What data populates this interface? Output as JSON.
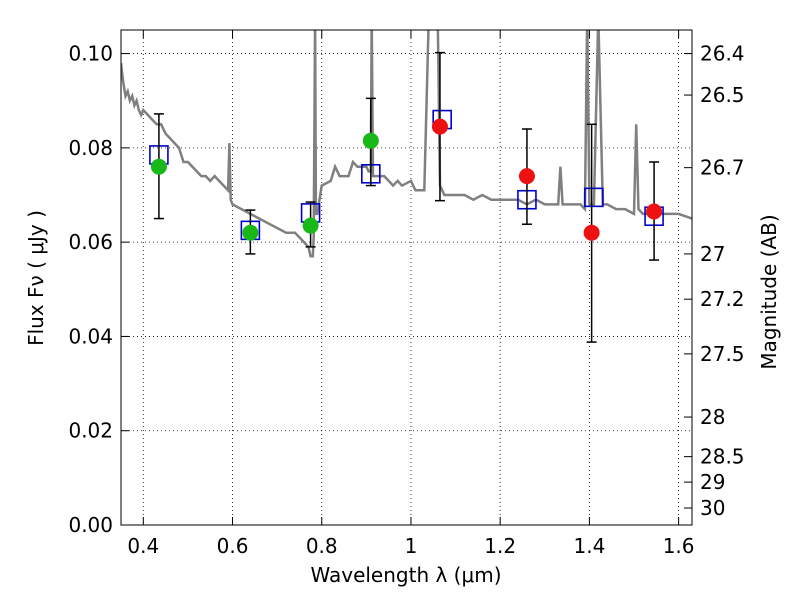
{
  "chart_data": {
    "type": "scatter",
    "title": "",
    "xlabel": "Wavelength  λ (μm)",
    "ylabel": "Flux  Fν  ( μJy )",
    "y2label": "Magnitude (AB)",
    "xlim": [
      0.35,
      1.63
    ],
    "ylim": [
      0.0,
      0.105
    ],
    "grid": true,
    "x_ticks": [
      0.4,
      0.6,
      0.8,
      1.0,
      1.2,
      1.4,
      1.6
    ],
    "x_tick_labels": [
      "0.4",
      "0.6",
      "0.8",
      "1",
      "1.2",
      "1.4",
      "1.6"
    ],
    "y_ticks": [
      0.0,
      0.02,
      0.04,
      0.06,
      0.08,
      0.1
    ],
    "y_tick_labels": [
      "0.00",
      "0.02",
      "0.04",
      "0.06",
      "0.08",
      "0.10"
    ],
    "y2_ticks": [
      {
        "label": "26.4",
        "flux": 0.1
      },
      {
        "label": "26.5",
        "flux": 0.0912
      },
      {
        "label": "26.7",
        "flux": 0.0758
      },
      {
        "label": "27",
        "flux": 0.0575
      },
      {
        "label": "27.2",
        "flux": 0.0479
      },
      {
        "label": "27.5",
        "flux": 0.0363
      },
      {
        "label": "28",
        "flux": 0.0229
      },
      {
        "label": "28.5",
        "flux": 0.0145
      },
      {
        "label": "29",
        "flux": 0.0091
      },
      {
        "label": "30",
        "flux": 0.0036
      }
    ],
    "colors": {
      "template": "#808080",
      "model_box": "#0000cc",
      "optical_point": "#17b817",
      "nir_point": "#ee1111",
      "errorbar": "#000000"
    },
    "series": [
      {
        "kind": "line",
        "x": [
          0.35,
          0.355,
          0.36,
          0.365,
          0.37,
          0.375,
          0.38,
          0.385,
          0.39,
          0.395,
          0.4,
          0.41,
          0.42,
          0.43,
          0.44,
          0.45,
          0.46,
          0.47,
          0.48,
          0.49,
          0.5,
          0.51,
          0.52,
          0.53,
          0.54,
          0.55,
          0.56,
          0.57,
          0.58,
          0.59,
          0.593,
          0.596,
          0.6,
          0.62,
          0.64,
          0.66,
          0.68,
          0.7,
          0.72,
          0.74,
          0.75,
          0.76,
          0.77,
          0.775,
          0.78,
          0.782,
          0.785,
          0.787,
          0.79,
          0.8,
          0.82,
          0.83,
          0.84,
          0.85,
          0.86,
          0.87,
          0.88,
          0.89,
          0.9,
          0.905,
          0.91,
          0.912,
          0.915,
          0.92,
          0.94,
          0.95,
          0.96,
          0.97,
          0.98,
          1.0,
          1.01,
          1.02,
          1.03,
          1.04,
          1.05,
          1.06,
          1.065,
          1.07,
          1.075,
          1.08,
          1.1,
          1.12,
          1.14,
          1.16,
          1.18,
          1.2,
          1.22,
          1.24,
          1.26,
          1.28,
          1.3,
          1.32,
          1.33,
          1.335,
          1.34,
          1.36,
          1.38,
          1.39,
          1.395,
          1.4,
          1.41,
          1.42,
          1.43,
          1.44,
          1.46,
          1.48,
          1.5,
          1.505,
          1.51,
          1.52,
          1.54,
          1.56,
          1.58,
          1.6,
          1.63
        ],
        "y": [
          0.098,
          0.094,
          0.091,
          0.092,
          0.09,
          0.091,
          0.089,
          0.09,
          0.088,
          0.087,
          0.088,
          0.087,
          0.086,
          0.085,
          0.085,
          0.083,
          0.082,
          0.081,
          0.08,
          0.077,
          0.077,
          0.076,
          0.075,
          0.074,
          0.074,
          0.073,
          0.074,
          0.073,
          0.072,
          0.071,
          0.081,
          0.069,
          0.068,
          0.067,
          0.066,
          0.065,
          0.064,
          0.063,
          0.062,
          0.062,
          0.061,
          0.06,
          0.059,
          0.057,
          0.057,
          0.061,
          0.108,
          0.066,
          0.066,
          0.072,
          0.073,
          0.076,
          0.074,
          0.074,
          0.074,
          0.077,
          0.076,
          0.076,
          0.076,
          0.075,
          0.075,
          0.108,
          0.074,
          0.074,
          0.074,
          0.073,
          0.072,
          0.073,
          0.072,
          0.073,
          0.071,
          0.071,
          0.071,
          0.108,
          0.108,
          0.108,
          0.072,
          0.071,
          0.07,
          0.07,
          0.07,
          0.07,
          0.069,
          0.07,
          0.069,
          0.069,
          0.069,
          0.069,
          0.068,
          0.069,
          0.068,
          0.068,
          0.068,
          0.076,
          0.068,
          0.068,
          0.068,
          0.067,
          0.108,
          0.068,
          0.068,
          0.108,
          0.068,
          0.068,
          0.067,
          0.067,
          0.066,
          0.085,
          0.067,
          0.066,
          0.066,
          0.066,
          0.066,
          0.066,
          0.065
        ]
      },
      {
        "kind": "model_boxes",
        "x": [
          0.435,
          0.64,
          0.775,
          0.91,
          1.07,
          1.26,
          1.41,
          1.545
        ],
        "y": [
          0.0785,
          0.0625,
          0.0662,
          0.0745,
          0.086,
          0.069,
          0.0695,
          0.0655
        ]
      },
      {
        "kind": "observed_optical",
        "x": [
          0.435,
          0.64,
          0.775,
          0.91
        ],
        "y": [
          0.076,
          0.062,
          0.0635,
          0.0815
        ],
        "yerr_low": [
          0.065,
          0.0575,
          0.059,
          0.072
        ],
        "yerr_high": [
          0.0872,
          0.0668,
          0.0685,
          0.0905
        ]
      },
      {
        "kind": "observed_nir",
        "x": [
          1.065,
          1.26,
          1.405,
          1.545
        ],
        "y": [
          0.0845,
          0.074,
          0.062,
          0.0665
        ],
        "yerr_low": [
          0.0688,
          0.0638,
          0.0388,
          0.0562
        ],
        "yerr_high": [
          0.1002,
          0.084,
          0.085,
          0.077
        ]
      }
    ]
  }
}
